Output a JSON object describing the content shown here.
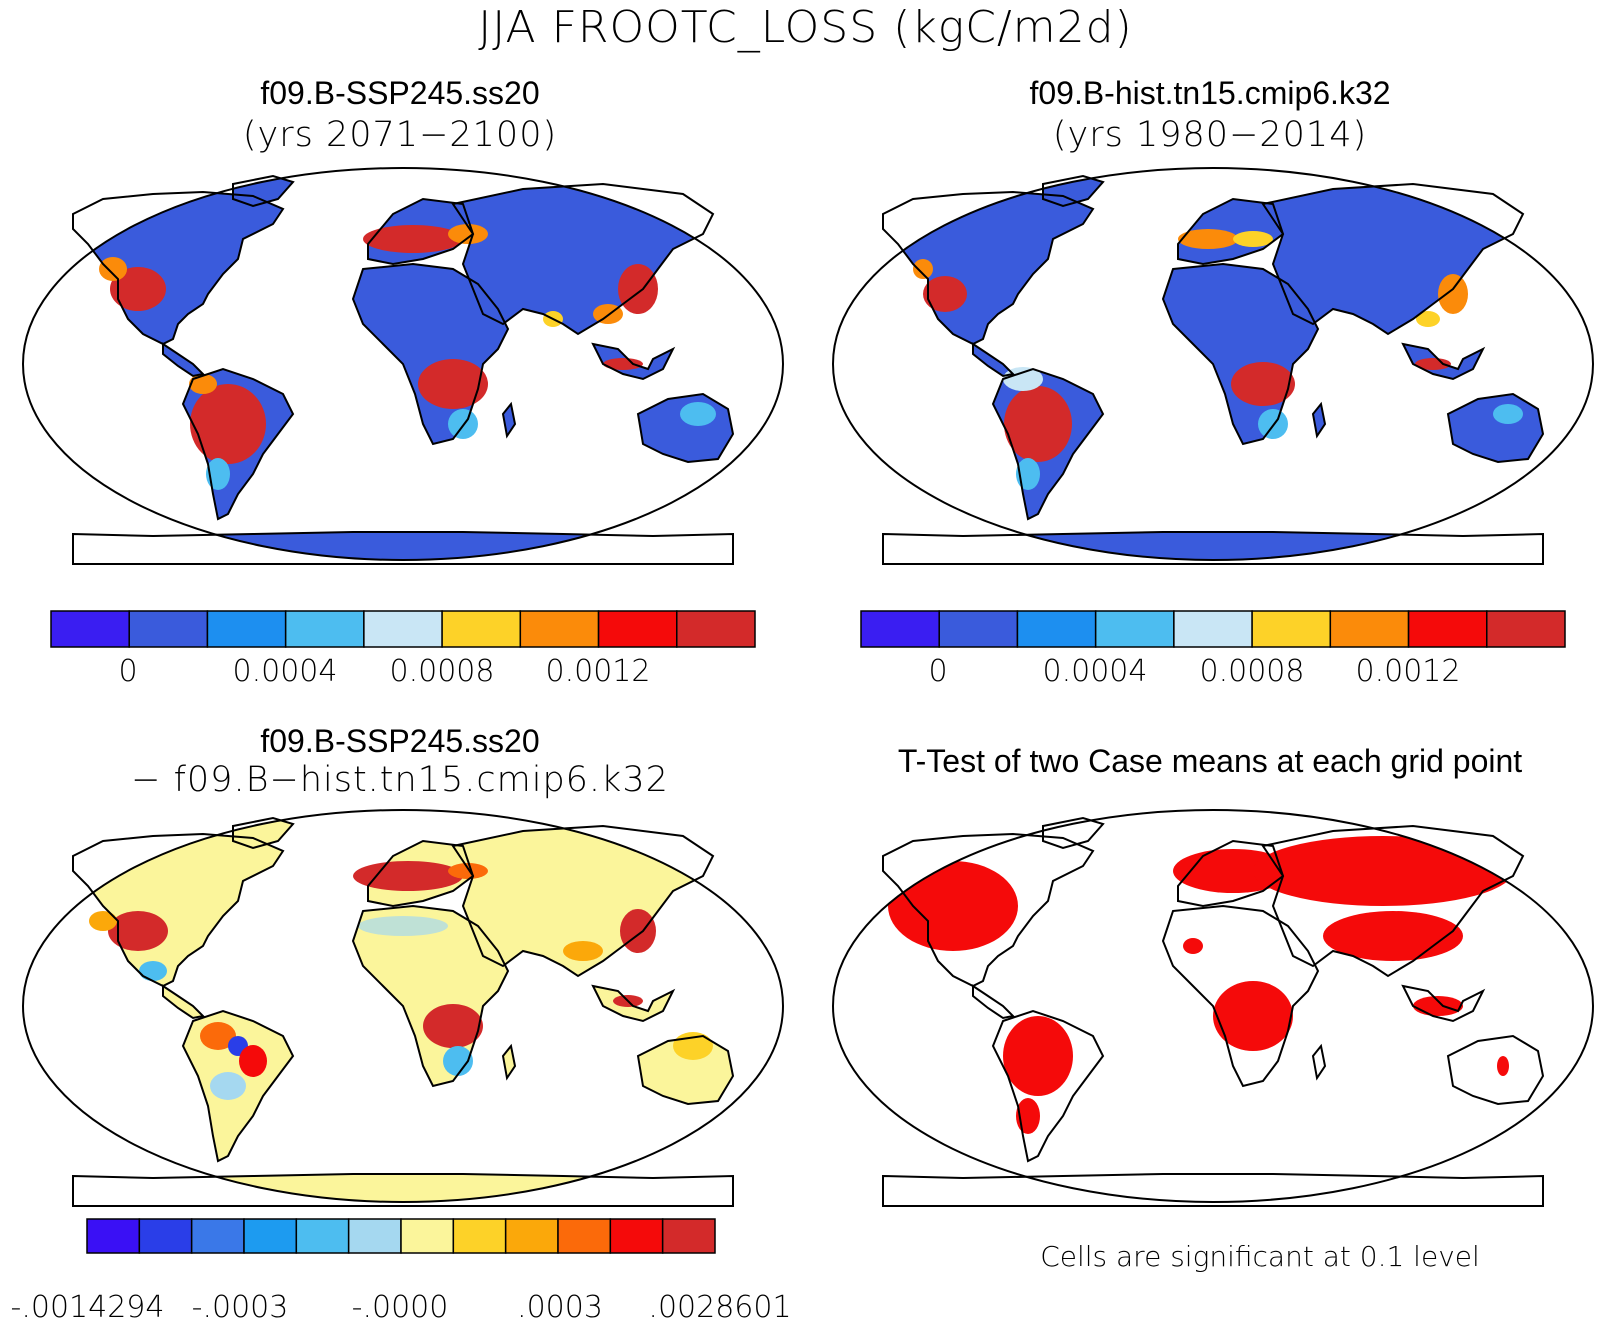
{
  "main_title": "JJA FROOTC_LOSS (kgC/m2d)",
  "panels": [
    {
      "title": "f09.B-SSP245.ss20",
      "subtitle": "(yrs 2071−2100)"
    },
    {
      "title": "f09.B-hist.tn15.cmip6.k32",
      "subtitle": "(yrs 1980−2014)"
    },
    {
      "title": "f09.B-SSP245.ss20",
      "subtitle": "− f09.B−hist.tn15.cmip6.k32"
    },
    {
      "title": "T-Test of two Case means at each grid point",
      "subtitle": ""
    }
  ],
  "colorbar_abs": {
    "colors": [
      "#3a1ef2",
      "#3a5bdc",
      "#1d8ff0",
      "#4dbdf0",
      "#c9e6f5",
      "#fdd228",
      "#fb8b0a",
      "#f50a0a",
      "#d32a2a"
    ],
    "labels": [
      "0",
      "0.0004",
      "0.0008",
      "0.0012"
    ]
  },
  "colorbar_abs_2": {
    "labels": [
      "0",
      "0.0004",
      "0.0008",
      "0.0012"
    ]
  },
  "colorbar_diff": {
    "colors": [
      "#3a10f5",
      "#2a3ee8",
      "#3a78e8",
      "#1d9bf0",
      "#4dbdf0",
      "#a5d8f0",
      "#fbf59b",
      "#fdd228",
      "#fba80a",
      "#fb6a0a",
      "#f50a0a",
      "#d32a2a"
    ],
    "labels": [
      "-.0014294",
      "-.0003",
      "-.0000",
      ".0003",
      ".0028601"
    ]
  },
  "significance_note": "Cells are significant at 0.1 level"
}
